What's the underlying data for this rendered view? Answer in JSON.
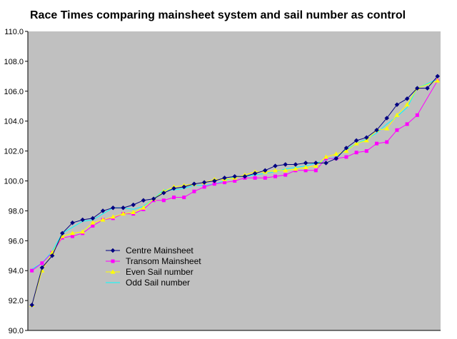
{
  "chart_data": {
    "type": "line",
    "title": "Race Times comparing mainsheet system and sail number as control",
    "xlabel": "",
    "ylabel": "",
    "ylim": [
      90.0,
      110.0
    ],
    "yticks": [
      "90.0",
      "92.0",
      "94.0",
      "96.0",
      "98.0",
      "100.0",
      "102.0",
      "104.0",
      "106.0",
      "108.0",
      "110.0"
    ],
    "grid": false,
    "plot_background": "#c0c0c0",
    "legend_position": "inside-bottom-left",
    "series": [
      {
        "name": "Centre Mainsheet",
        "color": "#000080",
        "marker": "diamond",
        "values": [
          91.7,
          94.2,
          95.0,
          96.5,
          97.2,
          97.4,
          97.5,
          98.0,
          98.2,
          98.2,
          98.4,
          98.7,
          98.8,
          99.2,
          99.5,
          99.6,
          99.8,
          99.9,
          100.0,
          100.2,
          100.3,
          100.3,
          100.5,
          100.7,
          101.0,
          101.1,
          101.1,
          101.2,
          101.2,
          101.2,
          101.5,
          102.2,
          102.7,
          102.9,
          103.4,
          104.2,
          105.1,
          105.5,
          106.2,
          106.2,
          107.0
        ],
        "x": [
          1,
          2,
          3,
          4,
          5,
          6,
          7,
          8,
          9,
          10,
          11,
          12,
          13,
          14,
          15,
          16,
          17,
          18,
          19,
          20,
          21,
          22,
          23,
          24,
          25,
          26,
          27,
          28,
          29,
          30,
          31,
          32,
          33,
          34,
          35,
          36,
          37,
          38,
          39,
          40,
          41
        ]
      },
      {
        "name": "Transom Mainsheet",
        "color": "#ff00ff",
        "marker": "square",
        "values": [
          94.0,
          94.5,
          95.2,
          96.2,
          96.3,
          96.5,
          97.0,
          97.4,
          97.5,
          97.8,
          97.8,
          98.1,
          98.7,
          98.7,
          98.9,
          98.9,
          99.3,
          99.6,
          99.8,
          99.9,
          100.0,
          100.2,
          100.2,
          100.2,
          100.3,
          100.4,
          100.7,
          100.7,
          100.7,
          101.5,
          101.5,
          101.6,
          101.9,
          102.0,
          102.5,
          102.6,
          103.4,
          103.8,
          104.4,
          106.7
        ],
        "x": [
          1,
          2,
          3,
          4,
          5,
          6,
          7,
          8,
          9,
          10,
          11,
          12,
          13,
          14,
          15,
          16,
          17,
          18,
          19,
          20,
          21,
          22,
          23,
          24,
          25,
          26,
          27,
          28,
          29,
          30,
          31,
          32,
          33,
          34,
          35,
          36,
          37,
          38,
          39,
          41
        ]
      },
      {
        "name": "Even Sail number",
        "color": "#ffff00",
        "marker": "triangle",
        "values": [
          91.7,
          94.0,
          95.2,
          96.3,
          96.5,
          96.6,
          97.2,
          97.4,
          97.6,
          97.8,
          97.9,
          98.2,
          98.8,
          99.3,
          99.6,
          99.7,
          99.8,
          99.9,
          100.1,
          100.1,
          100.2,
          100.4,
          100.6,
          100.6,
          100.7,
          100.7,
          100.8,
          100.9,
          101.0,
          101.6,
          101.8,
          102.0,
          102.5,
          102.7,
          103.4,
          103.5,
          104.4,
          105.1,
          106.2,
          106.7
        ],
        "x": [
          1,
          2,
          3,
          4,
          5,
          6,
          7,
          8,
          9,
          10,
          11,
          12,
          13,
          14,
          15,
          16,
          17,
          18,
          19,
          20,
          21,
          22,
          23,
          24,
          25,
          26,
          27,
          28,
          29,
          30,
          31,
          32,
          33,
          34,
          35,
          36,
          37,
          38,
          39,
          41
        ]
      },
      {
        "name": "Odd Sail number",
        "color": "#00ffff",
        "marker": "none",
        "values": [
          94.1,
          94.5,
          95.3,
          96.5,
          96.9,
          97.3,
          97.4,
          97.8,
          98.2,
          98.2,
          98.1,
          98.3,
          98.8,
          99.4,
          99.4,
          99.5,
          99.7,
          99.7,
          99.8,
          100.0,
          100.3,
          100.3,
          100.4,
          100.5,
          100.6,
          100.8,
          100.9,
          101.0,
          101.2,
          101.4,
          101.6,
          102.1,
          102.5,
          102.8,
          103.2,
          103.8,
          104.3,
          104.9,
          106.2,
          106.8
        ],
        "x": [
          1,
          2,
          3,
          4,
          5,
          6,
          7,
          8,
          9,
          10,
          11,
          12,
          13,
          14,
          15,
          16,
          17,
          18,
          19,
          20,
          21,
          22,
          23,
          24,
          25,
          26,
          27,
          28,
          29,
          30,
          31,
          32,
          33,
          34,
          35,
          36,
          37,
          38,
          39,
          41
        ]
      }
    ]
  }
}
